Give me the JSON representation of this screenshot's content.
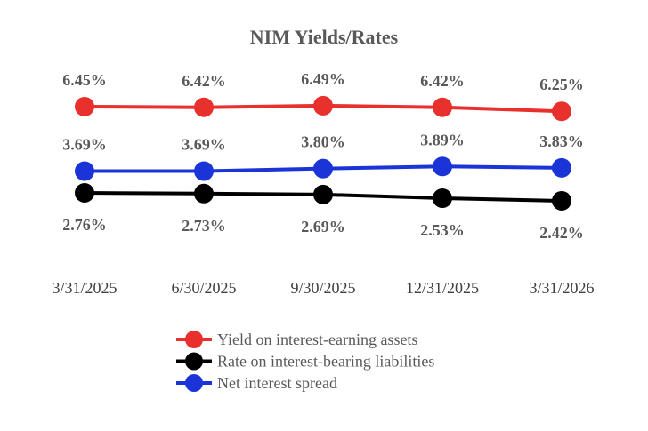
{
  "chart_data": {
    "type": "line",
    "title": "NIM Yields/Rates",
    "categories": [
      "3/31/2025",
      "6/30/2025",
      "9/30/2025",
      "12/31/2025",
      "3/31/2026"
    ],
    "series": [
      {
        "name": "Yield on interest-earning assets",
        "color": "#e8302c",
        "label_position": "above",
        "values": [
          6.45,
          6.42,
          6.49,
          6.42,
          6.25
        ],
        "labels": [
          "6.45%",
          "6.42%",
          "6.49%",
          "6.42%",
          "6.25%"
        ]
      },
      {
        "name": "Rate on interest-bearing liabilities",
        "color": "#000000",
        "label_position": "below",
        "values": [
          2.76,
          2.73,
          2.69,
          2.53,
          2.42
        ],
        "labels": [
          "2.76%",
          "2.73%",
          "2.69%",
          "2.53%",
          "2.42%"
        ]
      },
      {
        "name": "Net interest spread",
        "color": "#1a34d8",
        "label_position": "above",
        "values": [
          3.69,
          3.69,
          3.8,
          3.89,
          3.83
        ],
        "labels": [
          "3.69%",
          "3.69%",
          "3.80%",
          "3.89%",
          "3.83%"
        ]
      }
    ],
    "legend": "bottom",
    "grid": false,
    "y_axis_visible": false
  }
}
